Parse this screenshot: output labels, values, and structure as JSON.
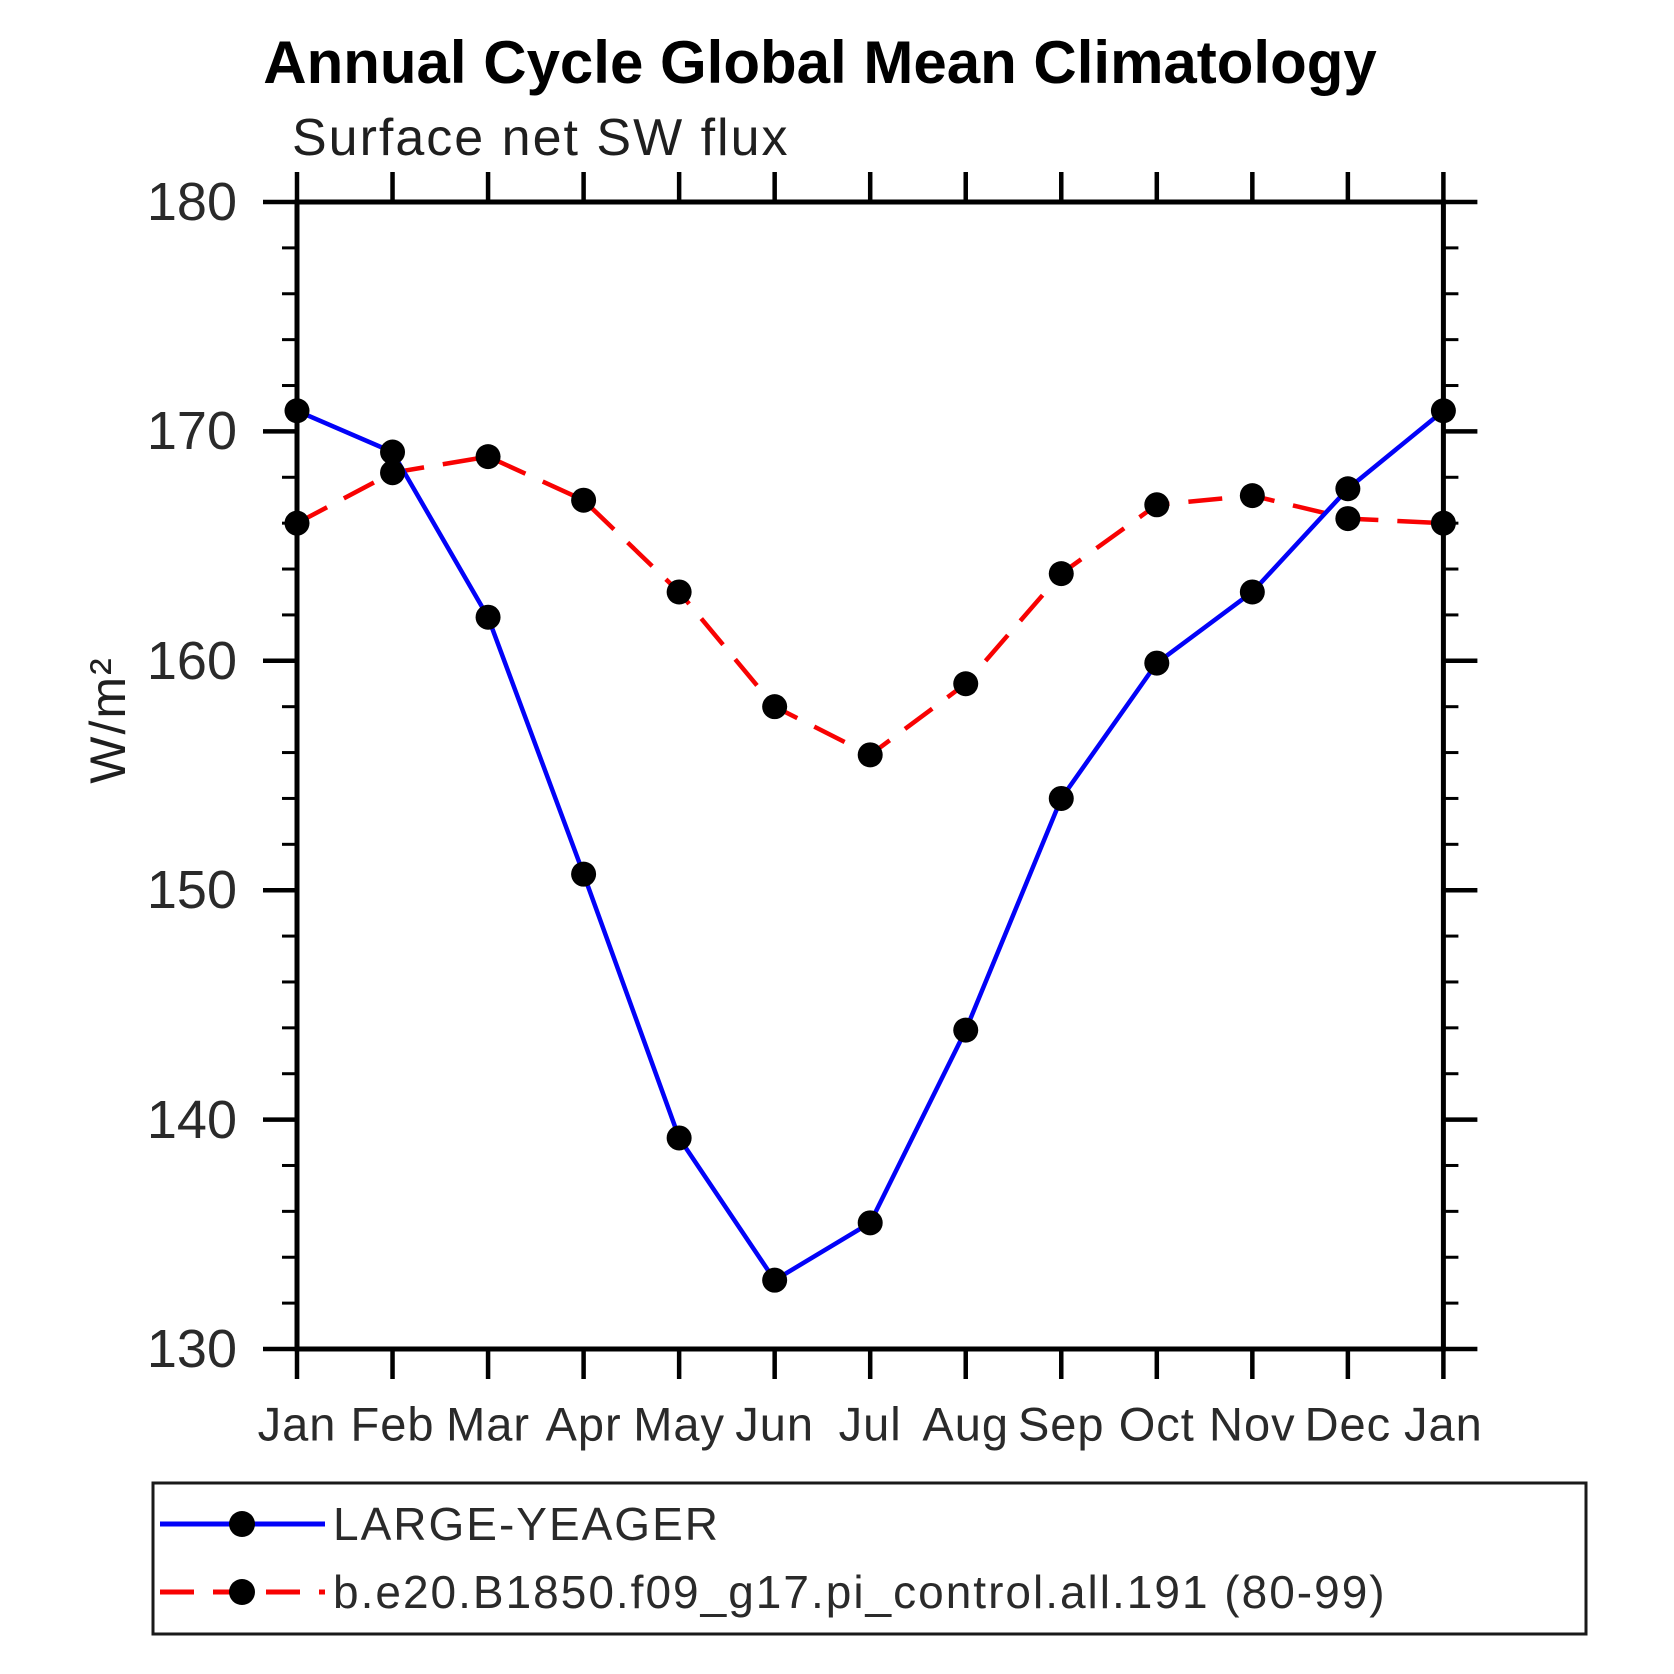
{
  "title": "Annual Cycle Global Mean Climatology",
  "subtitle": "Surface net SW flux",
  "ylabel": "W/m²",
  "chart_data": {
    "type": "line",
    "categories": [
      "Jan",
      "Feb",
      "Mar",
      "Apr",
      "May",
      "Jun",
      "Jul",
      "Aug",
      "Sep",
      "Oct",
      "Nov",
      "Dec",
      "Jan"
    ],
    "series": [
      {
        "name": "LARGE-YEAGER",
        "line_color": "#0202f8",
        "line_style": "solid",
        "marker": "filled-circle",
        "marker_color": "#000000",
        "values": [
          170.9,
          169.1,
          161.9,
          150.7,
          139.2,
          133.0,
          135.5,
          143.9,
          154.0,
          159.9,
          163.0,
          167.5,
          170.9
        ]
      },
      {
        "name": "b.e20.B1850.f09_g17.pi_control.all.191 (80-99)",
        "line_color": "#f80202",
        "line_style": "dashed",
        "marker": "filled-circle",
        "marker_color": "#000000",
        "values": [
          166.0,
          168.2,
          168.9,
          167.0,
          163.0,
          158.0,
          155.9,
          159.0,
          163.8,
          166.8,
          167.2,
          166.2,
          166.0
        ]
      }
    ],
    "ylim": [
      130,
      180
    ],
    "ytick_major": [
      130,
      140,
      150,
      160,
      170,
      180
    ],
    "ytick_minor_step": 2,
    "xlabel": "",
    "grid": false,
    "frame": "box",
    "legend_position": "bottom-left-box",
    "axis_color": "#000000"
  }
}
